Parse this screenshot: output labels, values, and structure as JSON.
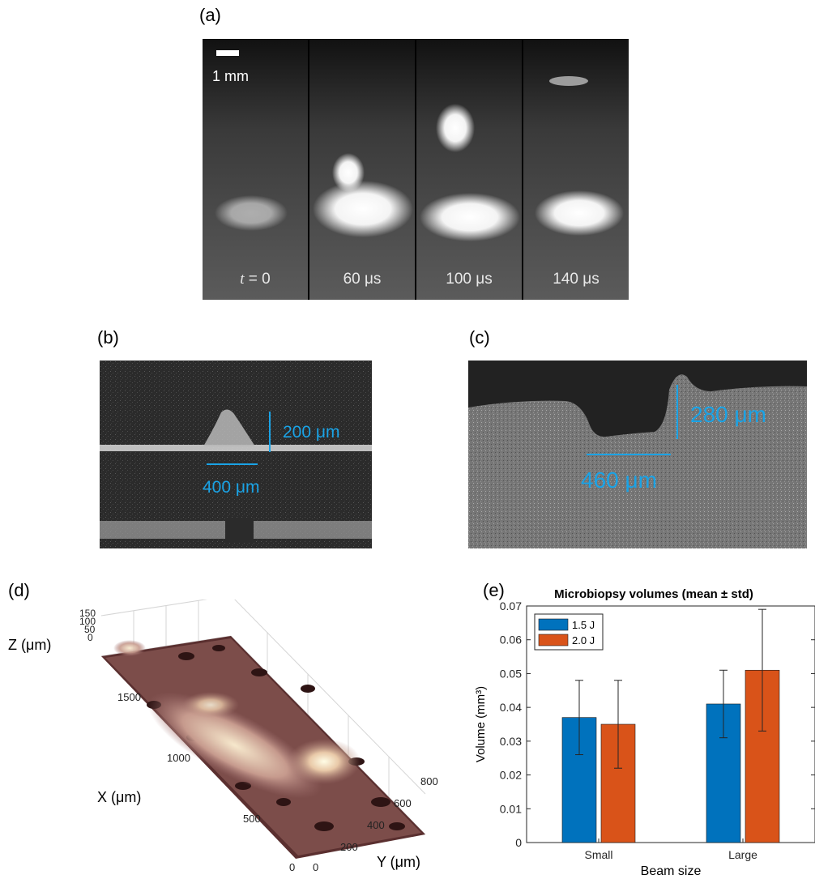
{
  "panels": {
    "a": {
      "label": "(a)",
      "scale_bar": "1 mm",
      "frames": [
        {
          "time_var": "t",
          "time_rest": " = 0"
        },
        {
          "time_var": "",
          "time_rest": "60 μs"
        },
        {
          "time_var": "",
          "time_rest": "100 μs"
        },
        {
          "time_var": "",
          "time_rest": "140 μs"
        }
      ]
    },
    "b": {
      "label": "(b)",
      "height_label": "200 μm",
      "width_label": "400 μm"
    },
    "c": {
      "label": "(c)",
      "height_label": "280 μm",
      "width_label": "460 μm"
    },
    "d": {
      "label": "(d)",
      "z_axis_label": "Z (μm)",
      "x_axis_label": "X (μm)",
      "y_axis_label": "Y (μm)",
      "z_ticks": [
        "150",
        "100",
        "50",
        "0"
      ],
      "x_ticks": [
        "1500",
        "1000",
        "500",
        "0"
      ],
      "y_ticks": [
        "0",
        "200",
        "400",
        "600",
        "800"
      ]
    },
    "e": {
      "label": "(e)"
    }
  },
  "chart_data": {
    "type": "bar",
    "title": "Microbiopsy volumes (mean ± std)",
    "xlabel": "Beam size",
    "ylabel": "Volume (mm³)",
    "categories": [
      "Small",
      "Large"
    ],
    "series": [
      {
        "name": "1.5 J",
        "color": "#0072bd",
        "values": [
          0.037,
          0.041
        ],
        "std": [
          0.011,
          0.01
        ]
      },
      {
        "name": "2.0 J",
        "color": "#d95319",
        "values": [
          0.035,
          0.051
        ],
        "std": [
          0.013,
          0.018
        ]
      }
    ],
    "ylim": [
      0,
      0.07
    ],
    "yticks": [
      "0",
      "0.01",
      "0.02",
      "0.03",
      "0.04",
      "0.05",
      "0.06",
      "0.07"
    ],
    "legend": "top-left",
    "grid": false
  }
}
